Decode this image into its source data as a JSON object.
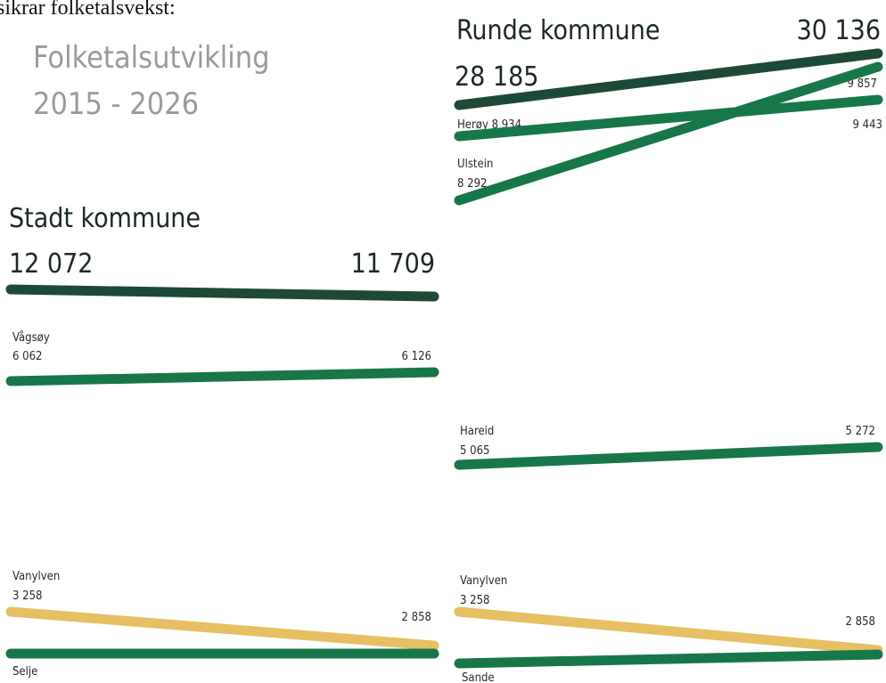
{
  "intro": "sikrar folketalsvekst:",
  "heading": {
    "line1": "Folketalsutvikling",
    "line2": "2015 - 2026"
  },
  "runde": {
    "title": "Runde kommune",
    "start": "28 185",
    "end": "30 136",
    "herøy": {
      "start": "Herøy 8 934",
      "end": "9 443"
    },
    "ulstein": {
      "name": "Ulstein",
      "start": "8 292",
      "end": "9 857"
    },
    "hareid": {
      "name": "Hareid",
      "start": "5 065",
      "end": "5 272"
    },
    "vanylven": {
      "name": "Vanylven",
      "start": "3 258",
      "end": "2 858"
    },
    "sande": {
      "name": "Sande"
    }
  },
  "stadt": {
    "title": "Stadt kommune",
    "start": "12 072",
    "end": "11 709",
    "vagsoy": {
      "name": "Vågsøy",
      "start": "6 062",
      "end": "6 126"
    },
    "vanylven": {
      "name": "Vanylven",
      "start": "3 258",
      "end": "2 858"
    },
    "selje": {
      "name": "Selje"
    }
  }
}
